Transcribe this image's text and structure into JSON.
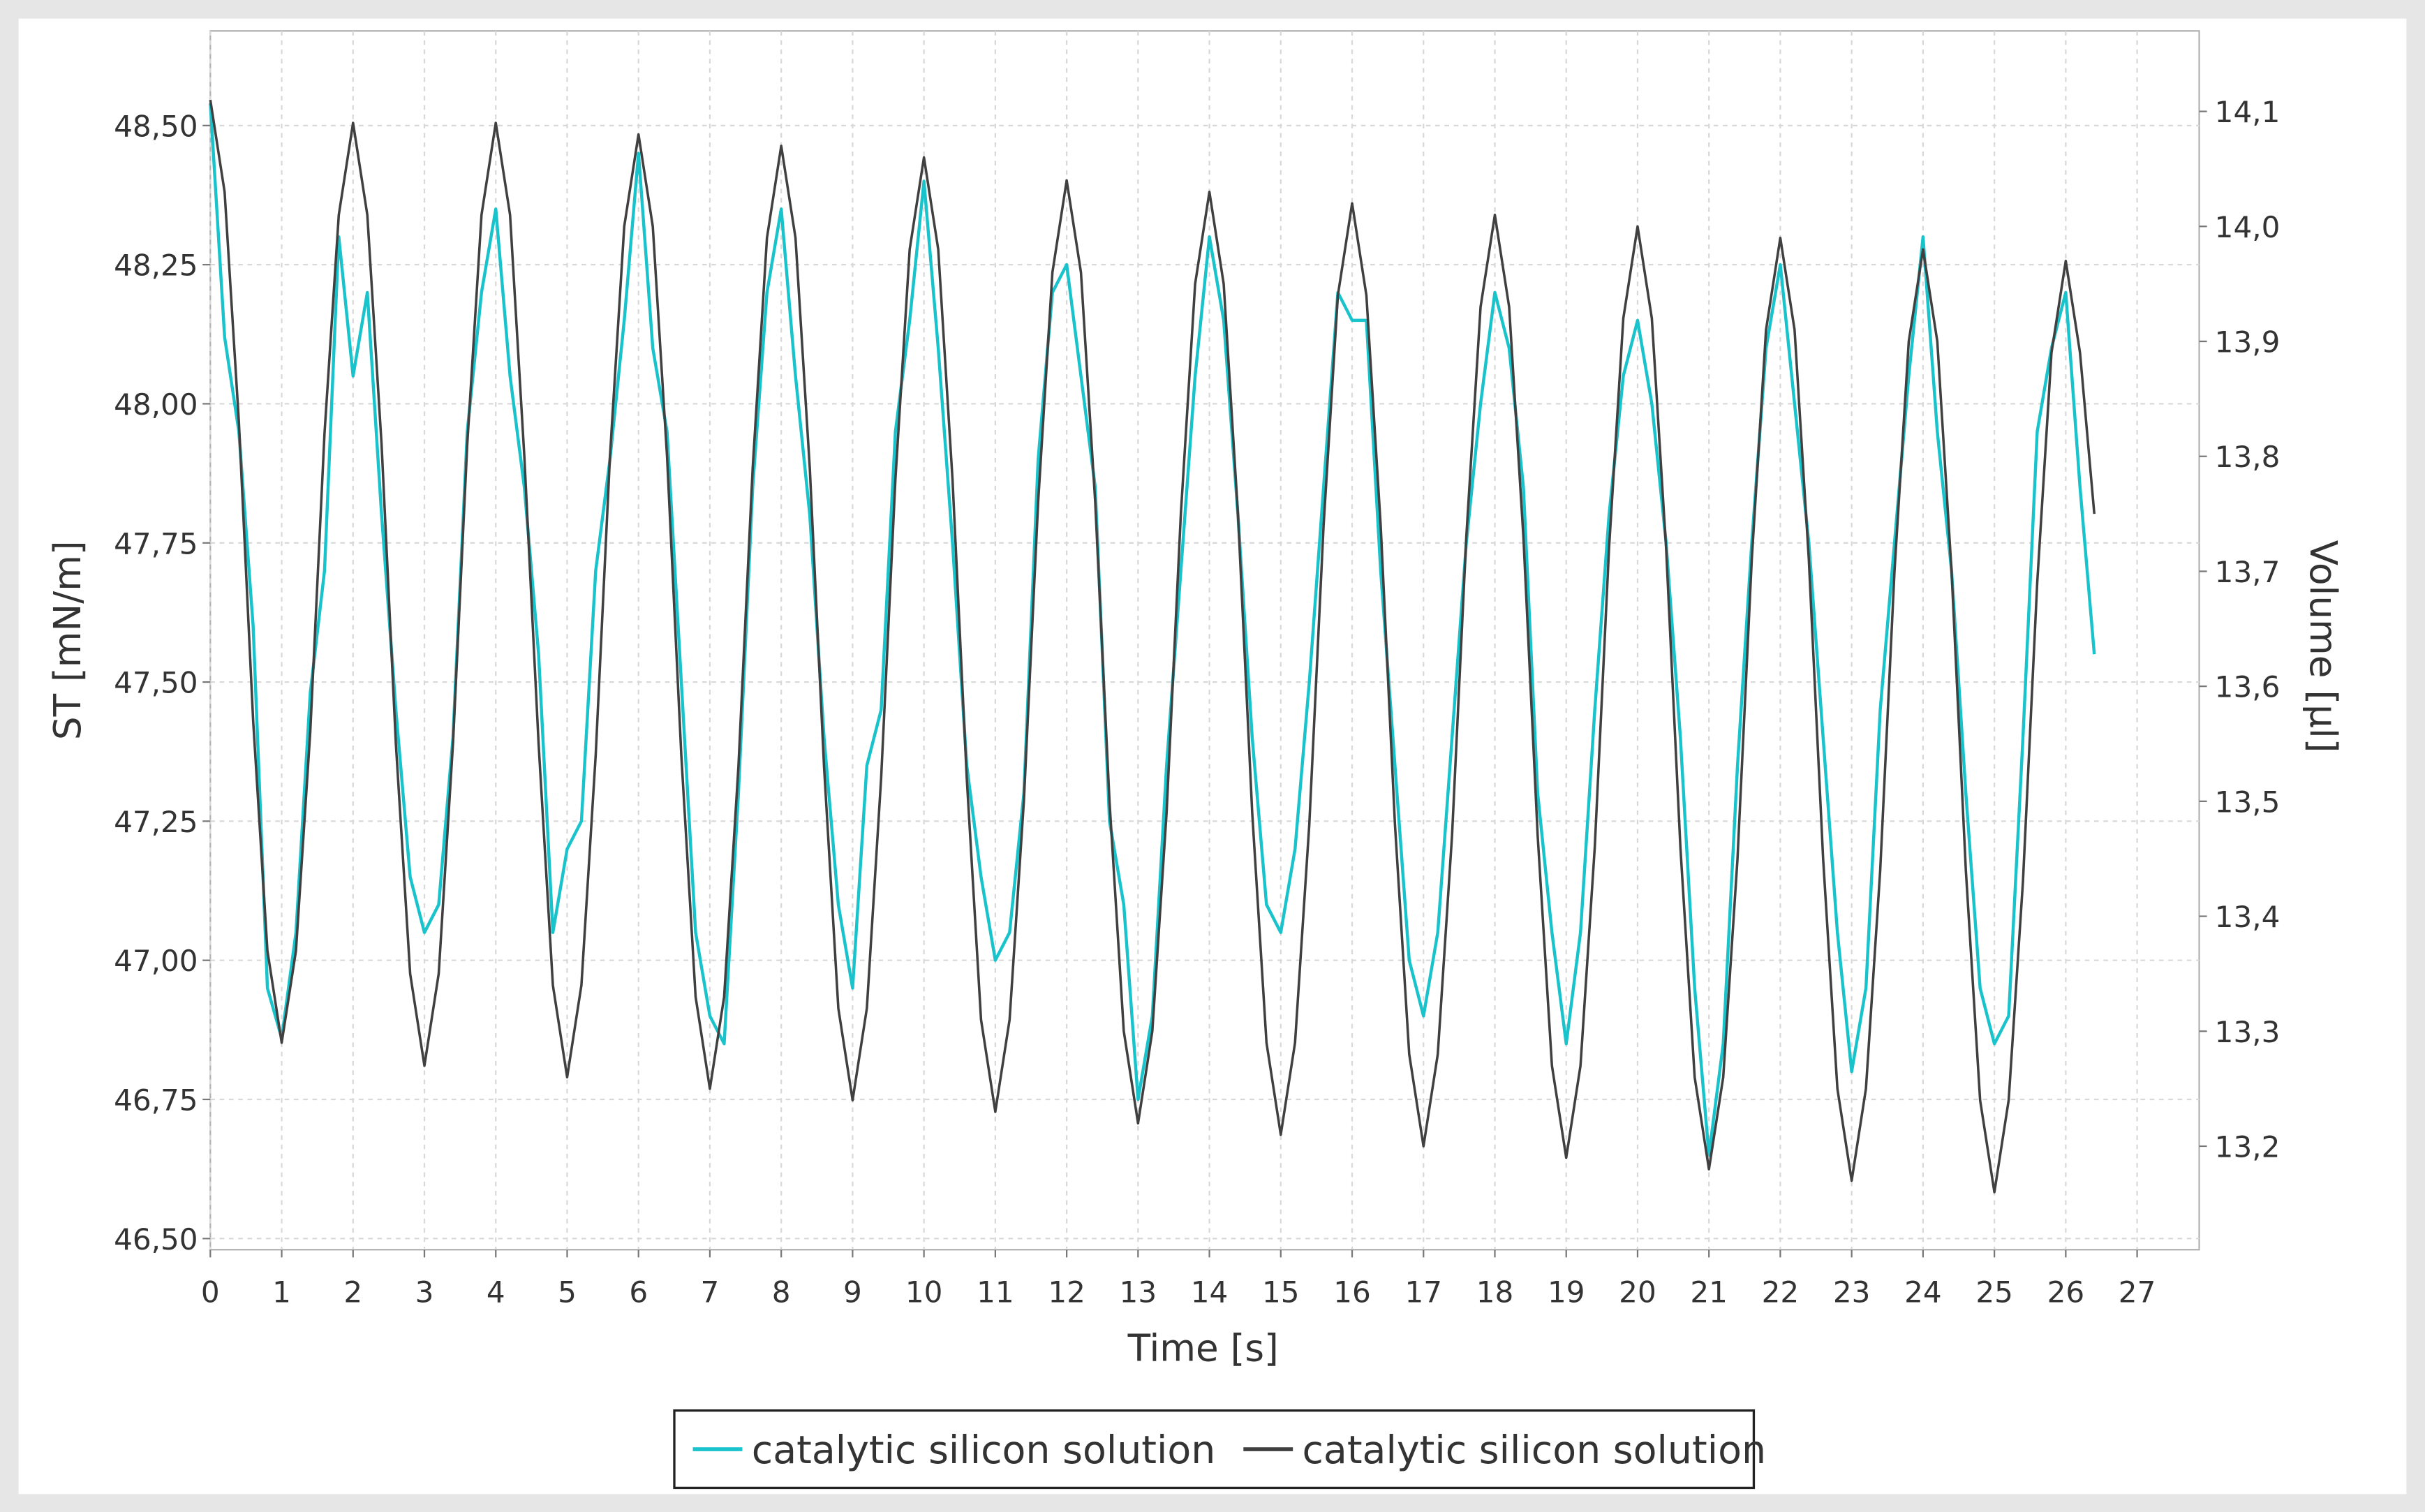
{
  "chart_data": {
    "type": "line",
    "xlabel": "Time [s]",
    "ylabel": "ST [mN/m]",
    "y2label": "Volume [µl]",
    "xlim": [
      0,
      27.87
    ],
    "ylim": [
      46.48,
      48.67
    ],
    "y2lim": [
      13.11,
      14.17
    ],
    "xticks": [
      0,
      1,
      2,
      3,
      4,
      5,
      6,
      7,
      8,
      9,
      10,
      11,
      12,
      13,
      14,
      15,
      16,
      17,
      18,
      19,
      20,
      21,
      22,
      23,
      24,
      25,
      26,
      27
    ],
    "yticks": [
      {
        "value": 46.5,
        "label": "46,50"
      },
      {
        "value": 46.75,
        "label": "46,75"
      },
      {
        "value": 47,
        "label": "47,00"
      },
      {
        "value": 47.25,
        "label": "47,25"
      },
      {
        "value": 47.5,
        "label": "47,50"
      },
      {
        "value": 47.75,
        "label": "47,75"
      },
      {
        "value": 48,
        "label": "48,00"
      },
      {
        "value": 48.25,
        "label": "48,25"
      },
      {
        "value": 48.5,
        "label": "48,50"
      }
    ],
    "y2ticks": [
      {
        "value": 13.2,
        "label": "13,2"
      },
      {
        "value": 13.3,
        "label": "13,3"
      },
      {
        "value": 13.4,
        "label": "13,4"
      },
      {
        "value": 13.5,
        "label": "13,5"
      },
      {
        "value": 13.6,
        "label": "13,6"
      },
      {
        "value": 13.7,
        "label": "13,7"
      },
      {
        "value": 13.8,
        "label": "13,8"
      },
      {
        "value": 13.9,
        "label": "13,9"
      },
      {
        "value": 14,
        "label": "14,0"
      },
      {
        "value": 14.1,
        "label": "14,1"
      }
    ],
    "grid": true,
    "legend": "bottom",
    "x": [
      0,
      0.2,
      0.4,
      0.6,
      0.8,
      1,
      1.2,
      1.4,
      1.6,
      1.8,
      2,
      2.2,
      2.4,
      2.6,
      2.8,
      3,
      3.2,
      3.4,
      3.6,
      3.8,
      4,
      4.2,
      4.4,
      4.6,
      4.8,
      5,
      5.2,
      5.4,
      5.6,
      5.8,
      6,
      6.2,
      6.4,
      6.6,
      6.8,
      7,
      7.2,
      7.4,
      7.6,
      7.8,
      8,
      8.2,
      8.4,
      8.6,
      8.8,
      9,
      9.2,
      9.4,
      9.6,
      9.8,
      10,
      10.2,
      10.4,
      10.6,
      10.8,
      11,
      11.2,
      11.4,
      11.6,
      11.8,
      12,
      12.2,
      12.4,
      12.6,
      12.8,
      13,
      13.2,
      13.4,
      13.6,
      13.8,
      14,
      14.2,
      14.4,
      14.6,
      14.8,
      15,
      15.2,
      15.4,
      15.6,
      15.8,
      16,
      16.2,
      16.4,
      16.6,
      16.8,
      17,
      17.2,
      17.4,
      17.6,
      17.8,
      18,
      18.2,
      18.4,
      18.6,
      18.8,
      19,
      19.2,
      19.4,
      19.6,
      19.8,
      20,
      20.2,
      20.4,
      20.6,
      20.8,
      21,
      21.2,
      21.4,
      21.6,
      21.8,
      22,
      22.2,
      22.4,
      22.6,
      22.8,
      23,
      23.2,
      23.4,
      23.6,
      23.8,
      24,
      24.2,
      24.4,
      24.6,
      24.8,
      25,
      25.2,
      25.4,
      25.6,
      25.8,
      26,
      26.2,
      26.4
    ],
    "series": [
      {
        "name": "catalytic silicon solution",
        "color": "#19c3cc",
        "axis": "y",
        "values": [
          48.54,
          48.12,
          47.95,
          47.6,
          46.95,
          46.86,
          47.05,
          47.48,
          47.7,
          48.3,
          48.05,
          48.2,
          47.8,
          47.45,
          47.15,
          47.05,
          47.1,
          47.4,
          47.95,
          48.2,
          48.35,
          48.05,
          47.85,
          47.55,
          47.05,
          47.2,
          47.25,
          47.7,
          47.9,
          48.15,
          48.45,
          48.1,
          47.95,
          47.5,
          47.05,
          46.9,
          46.85,
          47.3,
          47.85,
          48.2,
          48.35,
          48.05,
          47.8,
          47.4,
          47.1,
          46.95,
          47.35,
          47.45,
          47.95,
          48.15,
          48.4,
          48.1,
          47.75,
          47.35,
          47.15,
          47,
          47.05,
          47.3,
          47.9,
          48.2,
          48.25,
          48.05,
          47.85,
          47.25,
          47.1,
          46.75,
          46.9,
          47.35,
          47.7,
          48.05,
          48.3,
          48.15,
          47.8,
          47.4,
          47.1,
          47.05,
          47.2,
          47.5,
          47.85,
          48.2,
          48.15,
          48.15,
          47.7,
          47.35,
          47,
          46.9,
          47.05,
          47.4,
          47.75,
          48,
          48.2,
          48.1,
          47.85,
          47.3,
          47.05,
          46.85,
          47.05,
          47.45,
          47.8,
          48.05,
          48.15,
          48,
          47.75,
          47.4,
          46.95,
          46.65,
          46.85,
          47.35,
          47.75,
          48.1,
          48.25,
          48,
          47.75,
          47.4,
          47.05,
          46.8,
          46.95,
          47.45,
          47.75,
          48.05,
          48.3,
          47.95,
          47.7,
          47.3,
          46.95,
          46.85,
          46.9,
          47.4,
          47.95,
          48.1,
          48.2,
          47.85,
          47.55
        ]
      },
      {
        "name": "catalytic silicon solution",
        "color": "#404040",
        "axis": "y2",
        "values": [
          14.11,
          14.03,
          13.83,
          13.57,
          13.37,
          13.29,
          13.37,
          13.56,
          13.82,
          14.01,
          14.09,
          14.01,
          13.81,
          13.55,
          13.35,
          13.27,
          13.35,
          13.55,
          13.81,
          14.01,
          14.09,
          14.01,
          13.8,
          13.55,
          13.34,
          13.26,
          13.34,
          13.54,
          13.8,
          14,
          14.08,
          14,
          13.8,
          13.54,
          13.33,
          13.25,
          13.33,
          13.53,
          13.79,
          13.99,
          14.07,
          13.99,
          13.79,
          13.53,
          13.32,
          13.24,
          13.32,
          13.52,
          13.78,
          13.98,
          14.06,
          13.98,
          13.78,
          13.52,
          13.31,
          13.23,
          13.31,
          13.5,
          13.76,
          13.96,
          14.04,
          13.96,
          13.76,
          13.5,
          13.3,
          13.22,
          13.3,
          13.49,
          13.75,
          13.95,
          14.03,
          13.95,
          13.75,
          13.49,
          13.29,
          13.21,
          13.29,
          13.48,
          13.74,
          13.94,
          14.02,
          13.94,
          13.74,
          13.48,
          13.28,
          13.2,
          13.28,
          13.47,
          13.73,
          13.93,
          14.01,
          13.93,
          13.73,
          13.47,
          13.27,
          13.19,
          13.27,
          13.46,
          13.72,
          13.92,
          14,
          13.92,
          13.72,
          13.46,
          13.26,
          13.18,
          13.26,
          13.45,
          13.71,
          13.91,
          13.99,
          13.91,
          13.71,
          13.45,
          13.25,
          13.17,
          13.25,
          13.44,
          13.7,
          13.9,
          13.98,
          13.9,
          13.7,
          13.44,
          13.24,
          13.16,
          13.24,
          13.43,
          13.69,
          13.89,
          13.97,
          13.89,
          13.75
        ]
      }
    ]
  }
}
